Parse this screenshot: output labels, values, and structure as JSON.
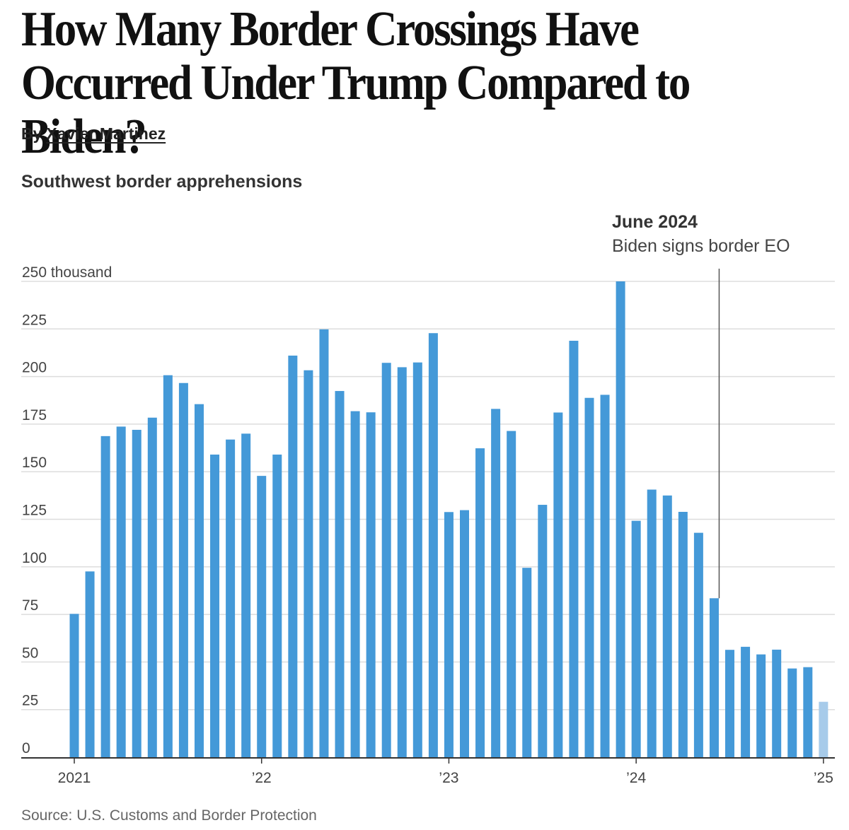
{
  "article": {
    "headline": "How Many Border Crossings Have Occurred Under Trump Compared to Biden?",
    "byline_prefix": "By",
    "author": "Xavier Martinez",
    "source": "Source: U.S. Customs and Border Protection"
  },
  "colors": {
    "bar": "#4499d8",
    "bar_preliminary": "#a7cbea",
    "grid": "#dddddd",
    "axis": "#333333",
    "annotation_line": "#555555"
  },
  "chart_data": {
    "type": "bar",
    "title": "Southwest border apprehensions",
    "ylabel": "",
    "xlabel": "",
    "ylim": [
      0,
      250
    ],
    "y_ticks": [
      {
        "value": 250,
        "label": "250 thousand"
      },
      {
        "value": 225,
        "label": "225"
      },
      {
        "value": 200,
        "label": "200"
      },
      {
        "value": 175,
        "label": "175"
      },
      {
        "value": 150,
        "label": "150"
      },
      {
        "value": 125,
        "label": "125"
      },
      {
        "value": 100,
        "label": "100"
      },
      {
        "value": 75,
        "label": "75"
      },
      {
        "value": 50,
        "label": "50"
      },
      {
        "value": 25,
        "label": "25"
      },
      {
        "value": 0,
        "label": "0"
      }
    ],
    "x_ticks": [
      {
        "index": 0,
        "label": "2021"
      },
      {
        "index": 12,
        "label": "’22"
      },
      {
        "index": 24,
        "label": "’23"
      },
      {
        "index": 36,
        "label": "’24"
      },
      {
        "index": 48,
        "label": "’25"
      }
    ],
    "categories": [
      "Jan 2021",
      "Feb 2021",
      "Mar 2021",
      "Apr 2021",
      "May 2021",
      "Jun 2021",
      "Jul 2021",
      "Aug 2021",
      "Sep 2021",
      "Oct 2021",
      "Nov 2021",
      "Dec 2021",
      "Jan 2022",
      "Feb 2022",
      "Mar 2022",
      "Apr 2022",
      "May 2022",
      "Jun 2022",
      "Jul 2022",
      "Aug 2022",
      "Sep 2022",
      "Oct 2022",
      "Nov 2022",
      "Dec 2022",
      "Jan 2023",
      "Feb 2023",
      "Mar 2023",
      "Apr 2023",
      "May 2023",
      "Jun 2023",
      "Jul 2023",
      "Aug 2023",
      "Sep 2023",
      "Oct 2023",
      "Nov 2023",
      "Dec 2023",
      "Jan 2024",
      "Feb 2024",
      "Mar 2024",
      "Apr 2024",
      "May 2024",
      "Jun 2024",
      "Jul 2024",
      "Aug 2024",
      "Sep 2024",
      "Oct 2024",
      "Nov 2024",
      "Dec 2024",
      "Jan 2025"
    ],
    "values": [
      75.3,
      97.6,
      168.7,
      173.7,
      172.0,
      178.4,
      200.7,
      196.6,
      185.5,
      159.0,
      166.9,
      170.0,
      147.8,
      159.0,
      211.0,
      203.3,
      224.8,
      192.4,
      181.8,
      181.2,
      207.2,
      204.9,
      207.4,
      222.8,
      128.8,
      129.8,
      162.3,
      183.0,
      171.4,
      99.5,
      132.6,
      181.1,
      218.8,
      188.8,
      190.4,
      250.0,
      124.2,
      140.6,
      137.5,
      128.9,
      117.9,
      83.5,
      56.4,
      58.0,
      54.0,
      56.5,
      46.6,
      47.3,
      29.1
    ],
    "preliminary_index": 48,
    "annotation": {
      "index": 41,
      "title": "June 2024",
      "text": "Biden signs border EO"
    }
  }
}
